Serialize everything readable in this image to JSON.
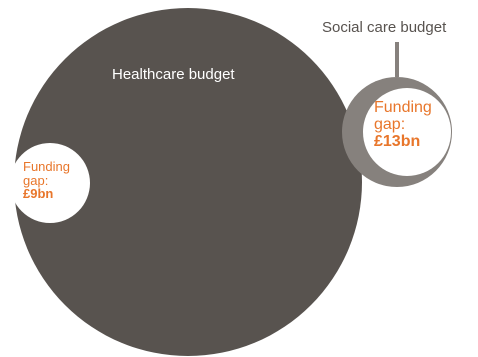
{
  "labels": {
    "healthcare_budget": "Healthcare budget",
    "social_care_budget": "Social care budget"
  },
  "funding_gaps": {
    "healthcare": {
      "label": "Funding gap:",
      "value": "£9bn"
    },
    "social_care": {
      "label": "Funding gap:",
      "value": "£13bn"
    }
  },
  "colors": {
    "healthcare_circle": "#58534f",
    "social_care_ring": "#86817d",
    "gap_fill": "#ffffff",
    "gap_text": "#e8762b",
    "label_text": "#58534f"
  }
}
